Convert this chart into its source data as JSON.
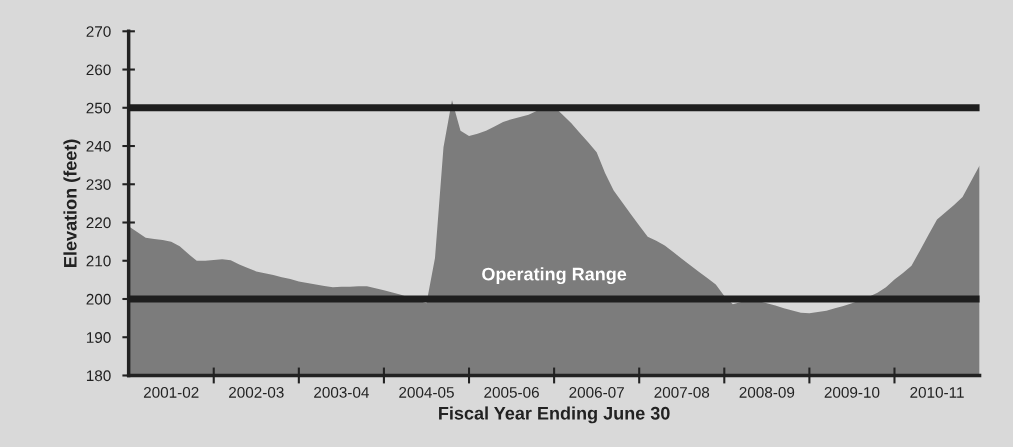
{
  "chart_data": {
    "type": "area",
    "xlabel": "Fiscal Year Ending June 30",
    "ylabel": "Elevation (feet)",
    "categories": [
      null,
      null,
      null,
      null,
      null,
      "2001-02",
      null,
      null,
      null,
      null,
      null,
      null,
      null,
      null,
      null,
      "2002-03",
      null,
      null,
      null,
      null,
      null,
      null,
      null,
      null,
      null,
      "2003-04",
      null,
      null,
      null,
      null,
      null,
      null,
      null,
      null,
      null,
      "2004-05",
      null,
      null,
      null,
      null,
      null,
      null,
      null,
      null,
      null,
      "2005-06",
      null,
      null,
      null,
      null,
      null,
      null,
      null,
      null,
      null,
      "2006-07",
      null,
      null,
      null,
      null,
      null,
      null,
      null,
      null,
      null,
      "2007-08",
      null,
      null,
      null,
      null,
      null,
      null,
      null,
      null,
      null,
      "2008-09",
      null,
      null,
      null,
      null,
      null,
      null,
      null,
      null,
      null,
      "2009-10",
      null,
      null,
      null,
      null,
      null,
      null,
      null,
      null,
      null,
      "2010-11",
      null,
      null,
      null,
      null,
      null
    ],
    "series": [
      {
        "color": "#7c7c7c",
        "values": [
          219,
          217.5,
          216,
          215.7,
          215.4,
          215,
          213.8,
          211.8,
          210,
          210,
          210.2,
          210.4,
          210.1,
          209,
          208.1,
          207.2,
          206.7,
          206.3,
          205.7,
          205.2,
          204.6,
          204.2,
          203.8,
          203.4,
          203.1,
          203.2,
          203.2,
          203.3,
          203.3,
          202.8,
          202.3,
          201.7,
          201.1,
          200.3,
          199.6,
          198.9,
          210.7,
          239.7,
          252,
          244,
          242.6,
          243.2,
          244,
          245.1,
          246.3,
          247,
          247.6,
          248.2,
          249.2,
          250.5,
          250.3,
          248.2,
          246,
          243.5,
          241,
          238.4,
          232.9,
          228.4,
          225.3,
          222.2,
          219.2,
          216.3,
          215.2,
          214,
          212.3,
          210.5,
          208.8,
          207.1,
          205.5,
          203.8,
          200.8,
          198.6,
          199.2,
          199.8,
          199.4,
          198.9,
          198.3,
          197.6,
          197,
          196.4,
          196.3,
          196.6,
          196.9,
          197.6,
          198.2,
          198.9,
          199.7,
          200.6,
          201.6,
          203.1,
          205.1,
          206.8,
          208.7,
          212.7,
          216.8,
          220.8,
          222.7,
          224.6,
          226.7,
          230.8,
          234.9
        ]
      }
    ],
    "ylim": [
      180,
      270
    ],
    "yticks": [
      180,
      190,
      200,
      210,
      220,
      230,
      240,
      250,
      260,
      270
    ],
    "ref_lines": [
      {
        "axis": "y",
        "value": 250,
        "color": "#1e1e1e"
      },
      {
        "axis": "y",
        "value": 200,
        "color": "#1e1e1e"
      }
    ],
    "annotations": [
      "Operating Range"
    ],
    "grid": false,
    "legend": false
  }
}
